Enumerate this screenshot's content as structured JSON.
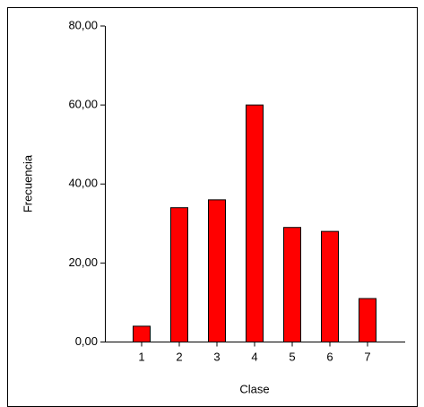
{
  "chart_data": {
    "type": "bar",
    "x_label": "Clase",
    "y_label": "Frecuencia",
    "categories": [
      "1",
      "2",
      "3",
      "4",
      "5",
      "6",
      "7"
    ],
    "values": [
      4,
      34,
      36,
      60,
      29,
      28,
      11
    ],
    "color": "#ff0000",
    "ylim": [
      0,
      80
    ],
    "yticks": [
      {
        "value": 0,
        "label": "0,00"
      },
      {
        "value": 20,
        "label": "20,00"
      },
      {
        "value": 40,
        "label": "40,00"
      },
      {
        "value": 60,
        "label": "60,00"
      },
      {
        "value": 80,
        "label": "80,00"
      }
    ],
    "grid": false
  }
}
